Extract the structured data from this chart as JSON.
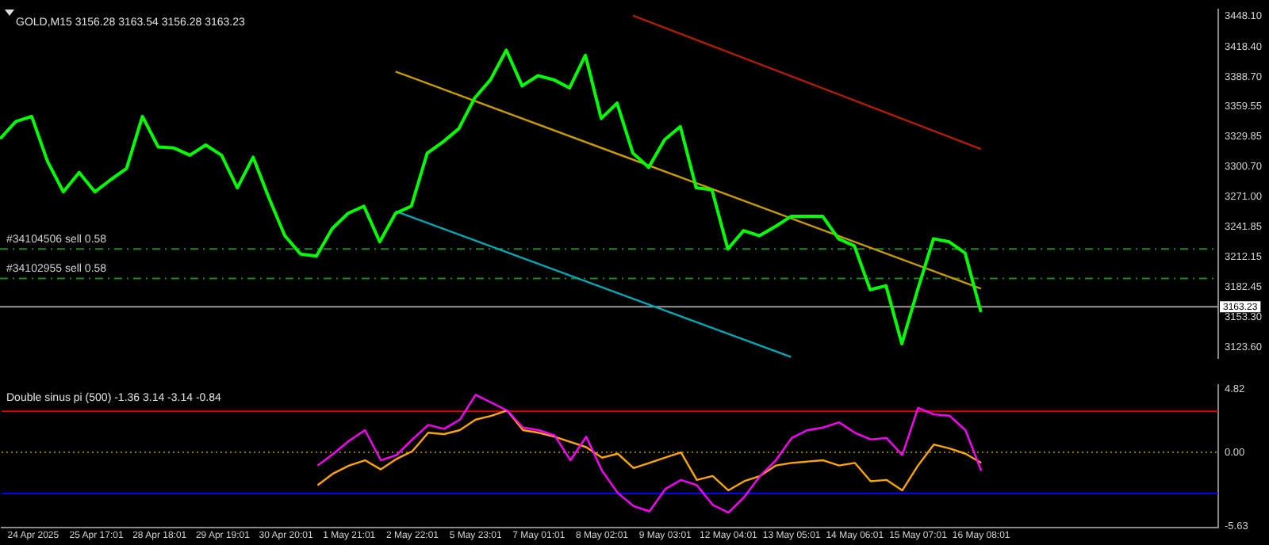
{
  "chart_data": [
    {
      "type": "line",
      "title": "GOLD,M15 3156.28 3163.54 3156.28 3163.23",
      "tick_labels": "y",
      "grid": false,
      "legend": false,
      "marker": "none",
      "ylim": [
        3113,
        3455
      ],
      "categories": [
        null,
        null,
        null,
        null,
        null,
        null,
        null,
        null,
        null,
        null,
        null,
        null,
        null,
        null,
        null,
        null,
        null,
        null,
        null,
        null,
        null,
        null,
        null,
        null,
        null,
        null,
        null,
        null,
        null,
        null,
        null,
        null,
        null,
        null,
        null,
        null,
        null,
        null,
        null,
        null,
        null,
        null,
        null,
        null,
        null,
        null,
        null,
        null,
        null,
        null,
        null,
        null,
        null,
        null,
        null,
        null,
        null,
        null,
        null,
        null,
        null,
        null,
        null,
        null,
        null,
        null,
        null,
        null,
        null,
        null,
        null,
        null,
        null,
        null,
        null,
        null,
        null,
        null
      ],
      "yticks": [
        {
          "value": 3448.1,
          "label": "3448.10"
        },
        {
          "value": 3418.4,
          "label": "3418.40"
        },
        {
          "value": 3388.7,
          "label": "3388.70"
        },
        {
          "value": 3359.55,
          "label": "3359.55"
        },
        {
          "value": 3329.85,
          "label": "3329.85"
        },
        {
          "value": 3300.7,
          "label": "3300.70"
        },
        {
          "value": 3271,
          "label": "3271.00"
        },
        {
          "value": 3241.85,
          "label": "3241.85"
        },
        {
          "value": 3212.15,
          "label": "3212.15"
        },
        {
          "value": 3182.45,
          "label": "3182.45"
        },
        {
          "value": 3153.3,
          "label": "3153.30"
        },
        {
          "value": 3123.6,
          "label": "3123.60"
        }
      ],
      "series": [
        {
          "color": "#00ff00",
          "values": [
            3328,
            3345,
            3350,
            3306,
            3276,
            3295,
            3276,
            3288,
            3299,
            3350,
            3320,
            3319,
            3312,
            3322,
            3312,
            3280,
            3310,
            3270,
            3233,
            3215,
            3213,
            3240,
            3255,
            3262,
            3227,
            3255,
            3262,
            3314,
            3325,
            3338,
            3368,
            3386,
            3415,
            3380,
            3390,
            3386,
            3378,
            3410,
            3348,
            3363,
            3314,
            3300,
            3327,
            3340,
            3280,
            3278,
            3220,
            3238,
            3233,
            3242,
            3252,
            3252,
            3252,
            3230,
            3223,
            3180,
            3184,
            3127,
            3180,
            3230,
            3227,
            3216,
            3158,
            null,
            null,
            null,
            null,
            null,
            null,
            null,
            null,
            null,
            null,
            null,
            null,
            null,
            null,
            null
          ]
        },
        {
          "color": "#c89a00",
          "values": [
            null,
            null,
            null,
            null,
            null,
            null,
            null,
            null,
            null,
            null,
            null,
            null,
            null,
            null,
            null,
            null,
            null,
            null,
            null,
            null,
            null,
            null,
            null,
            null,
            null,
            3394,
            null,
            null,
            null,
            null,
            null,
            null,
            null,
            null,
            null,
            null,
            null,
            null,
            null,
            null,
            null,
            null,
            null,
            null,
            null,
            null,
            null,
            null,
            null,
            null,
            null,
            null,
            null,
            null,
            null,
            null,
            null,
            null,
            null,
            null,
            null,
            null,
            3181,
            null,
            null,
            null,
            null,
            null,
            null,
            null,
            null,
            null,
            null,
            null,
            null,
            null,
            null,
            null
          ]
        },
        {
          "color": "#00a8b8",
          "values": [
            null,
            null,
            null,
            null,
            null,
            null,
            null,
            null,
            null,
            null,
            null,
            null,
            null,
            null,
            null,
            null,
            null,
            null,
            null,
            null,
            null,
            null,
            null,
            null,
            null,
            3257,
            null,
            null,
            null,
            null,
            null,
            null,
            null,
            null,
            null,
            null,
            null,
            null,
            null,
            null,
            null,
            null,
            null,
            null,
            null,
            null,
            null,
            null,
            null,
            null,
            3114,
            null,
            null,
            null,
            null,
            null,
            null,
            null,
            null,
            null,
            null,
            null,
            null,
            null,
            null,
            null,
            null,
            null,
            null,
            null,
            null,
            null,
            null,
            null,
            null,
            null,
            null,
            null
          ]
        },
        {
          "color": "#b02000",
          "values": [
            null,
            null,
            null,
            null,
            null,
            null,
            null,
            null,
            null,
            null,
            null,
            null,
            null,
            null,
            null,
            null,
            null,
            null,
            null,
            null,
            null,
            null,
            null,
            null,
            null,
            null,
            null,
            null,
            null,
            null,
            null,
            null,
            null,
            null,
            null,
            null,
            null,
            null,
            null,
            null,
            3449,
            null,
            null,
            null,
            null,
            null,
            null,
            null,
            null,
            null,
            null,
            null,
            null,
            null,
            null,
            null,
            null,
            null,
            null,
            null,
            null,
            null,
            3318,
            null,
            null,
            null,
            null,
            null,
            null,
            null,
            null,
            null,
            null,
            null,
            null,
            null,
            null,
            null
          ]
        }
      ],
      "ref_lines": [
        {
          "axis": "y",
          "value": 3220,
          "label": "#34104506 sell 0.58",
          "color": "#1f8a1f",
          "line_style": "dashed"
        },
        {
          "axis": "y",
          "value": 3191,
          "label": "#34102955 sell 0.58",
          "color": "#1f8a1f",
          "line_style": "dashed"
        },
        {
          "axis": "y",
          "value": 3163.23,
          "label": "3163.23",
          "color": "#9a9a9a",
          "line_style": "solid"
        }
      ]
    },
    {
      "type": "line",
      "title": "Double sinus pi (500) -1.36 3.14 -3.14 -0.84",
      "grid": false,
      "legend": false,
      "marker": "none",
      "ylim": [
        -5.74,
        5.16
      ],
      "categories": [
        null,
        null,
        "24 Apr 2025",
        null,
        null,
        null,
        "25 Apr 17:01",
        null,
        null,
        null,
        "28 Apr 18:01",
        null,
        null,
        null,
        "29 Apr 19:01",
        null,
        null,
        null,
        "30 Apr 20:01",
        null,
        null,
        null,
        "1 May 21:01",
        null,
        null,
        null,
        "2 May 22:01",
        null,
        null,
        null,
        "5 May 23:01",
        null,
        null,
        null,
        "7 May 01:01",
        null,
        null,
        null,
        "8 May 02:01",
        null,
        null,
        null,
        "9 May 03:01",
        null,
        null,
        null,
        "12 May 04:01",
        null,
        null,
        null,
        "13 May 05:01",
        null,
        null,
        null,
        "14 May 06:01",
        null,
        null,
        null,
        "15 May 07:01",
        null,
        null,
        null,
        "16 May 08:01",
        null,
        null,
        null,
        null,
        null,
        null,
        null,
        null,
        null,
        null,
        null,
        null,
        null,
        null,
        null
      ],
      "yticks": [
        4.82,
        {
          "value": 0,
          "label": "0.00"
        },
        -5.63
      ],
      "series": [
        {
          "color": "#ff00ff",
          "values": [
            null,
            null,
            null,
            null,
            null,
            null,
            null,
            null,
            null,
            null,
            null,
            null,
            null,
            null,
            null,
            null,
            null,
            null,
            null,
            null,
            -1.0,
            -0.1,
            0.9,
            1.7,
            -0.6,
            -0.2,
            1.0,
            2.1,
            1.8,
            2.5,
            4.4,
            3.8,
            3.2,
            1.9,
            1.7,
            1.3,
            -0.6,
            1.2,
            -1.4,
            -3.1,
            -4.1,
            -4.5,
            -2.8,
            -2.1,
            -2.5,
            -4.0,
            -4.6,
            -3.4,
            -1.8,
            -0.6,
            1.1,
            1.7,
            1.9,
            2.3,
            1.5,
            1.0,
            1.1,
            -0.2,
            3.4,
            2.9,
            2.8,
            1.7,
            -1.4,
            null,
            null,
            null,
            null,
            null,
            null,
            null,
            null,
            null,
            null,
            null,
            null,
            null,
            null,
            null
          ]
        },
        {
          "color": "#ffa500",
          "values": [
            null,
            null,
            null,
            null,
            null,
            null,
            null,
            null,
            null,
            null,
            null,
            null,
            null,
            null,
            null,
            null,
            null,
            null,
            null,
            null,
            -2.5,
            -1.6,
            -1.0,
            -0.6,
            -1.3,
            -0.5,
            0.1,
            1.5,
            1.4,
            1.7,
            2.5,
            2.8,
            3.2,
            1.7,
            1.5,
            1.2,
            0.8,
            0.4,
            -0.4,
            -0.1,
            -1.2,
            -0.8,
            -0.4,
            0.0,
            -2.1,
            -1.8,
            -2.9,
            -2.2,
            -1.8,
            -1.0,
            -0.8,
            -0.7,
            -0.6,
            -1.0,
            -0.8,
            -2.2,
            -2.1,
            -2.9,
            -1.0,
            0.6,
            0.3,
            -0.1,
            -0.8,
            null,
            null,
            null,
            null,
            null,
            null,
            null,
            null,
            null,
            null,
            null,
            null,
            null,
            null,
            null
          ]
        }
      ],
      "ref_lines": [
        {
          "axis": "y",
          "value": 3.14,
          "color": "#e00000",
          "line_style": "solid"
        },
        {
          "axis": "y",
          "value": -3.14,
          "color": "#0000ff",
          "line_style": "solid"
        },
        {
          "axis": "y",
          "value": 0,
          "color": "#8b7500",
          "line_style": "dotted"
        }
      ]
    }
  ]
}
